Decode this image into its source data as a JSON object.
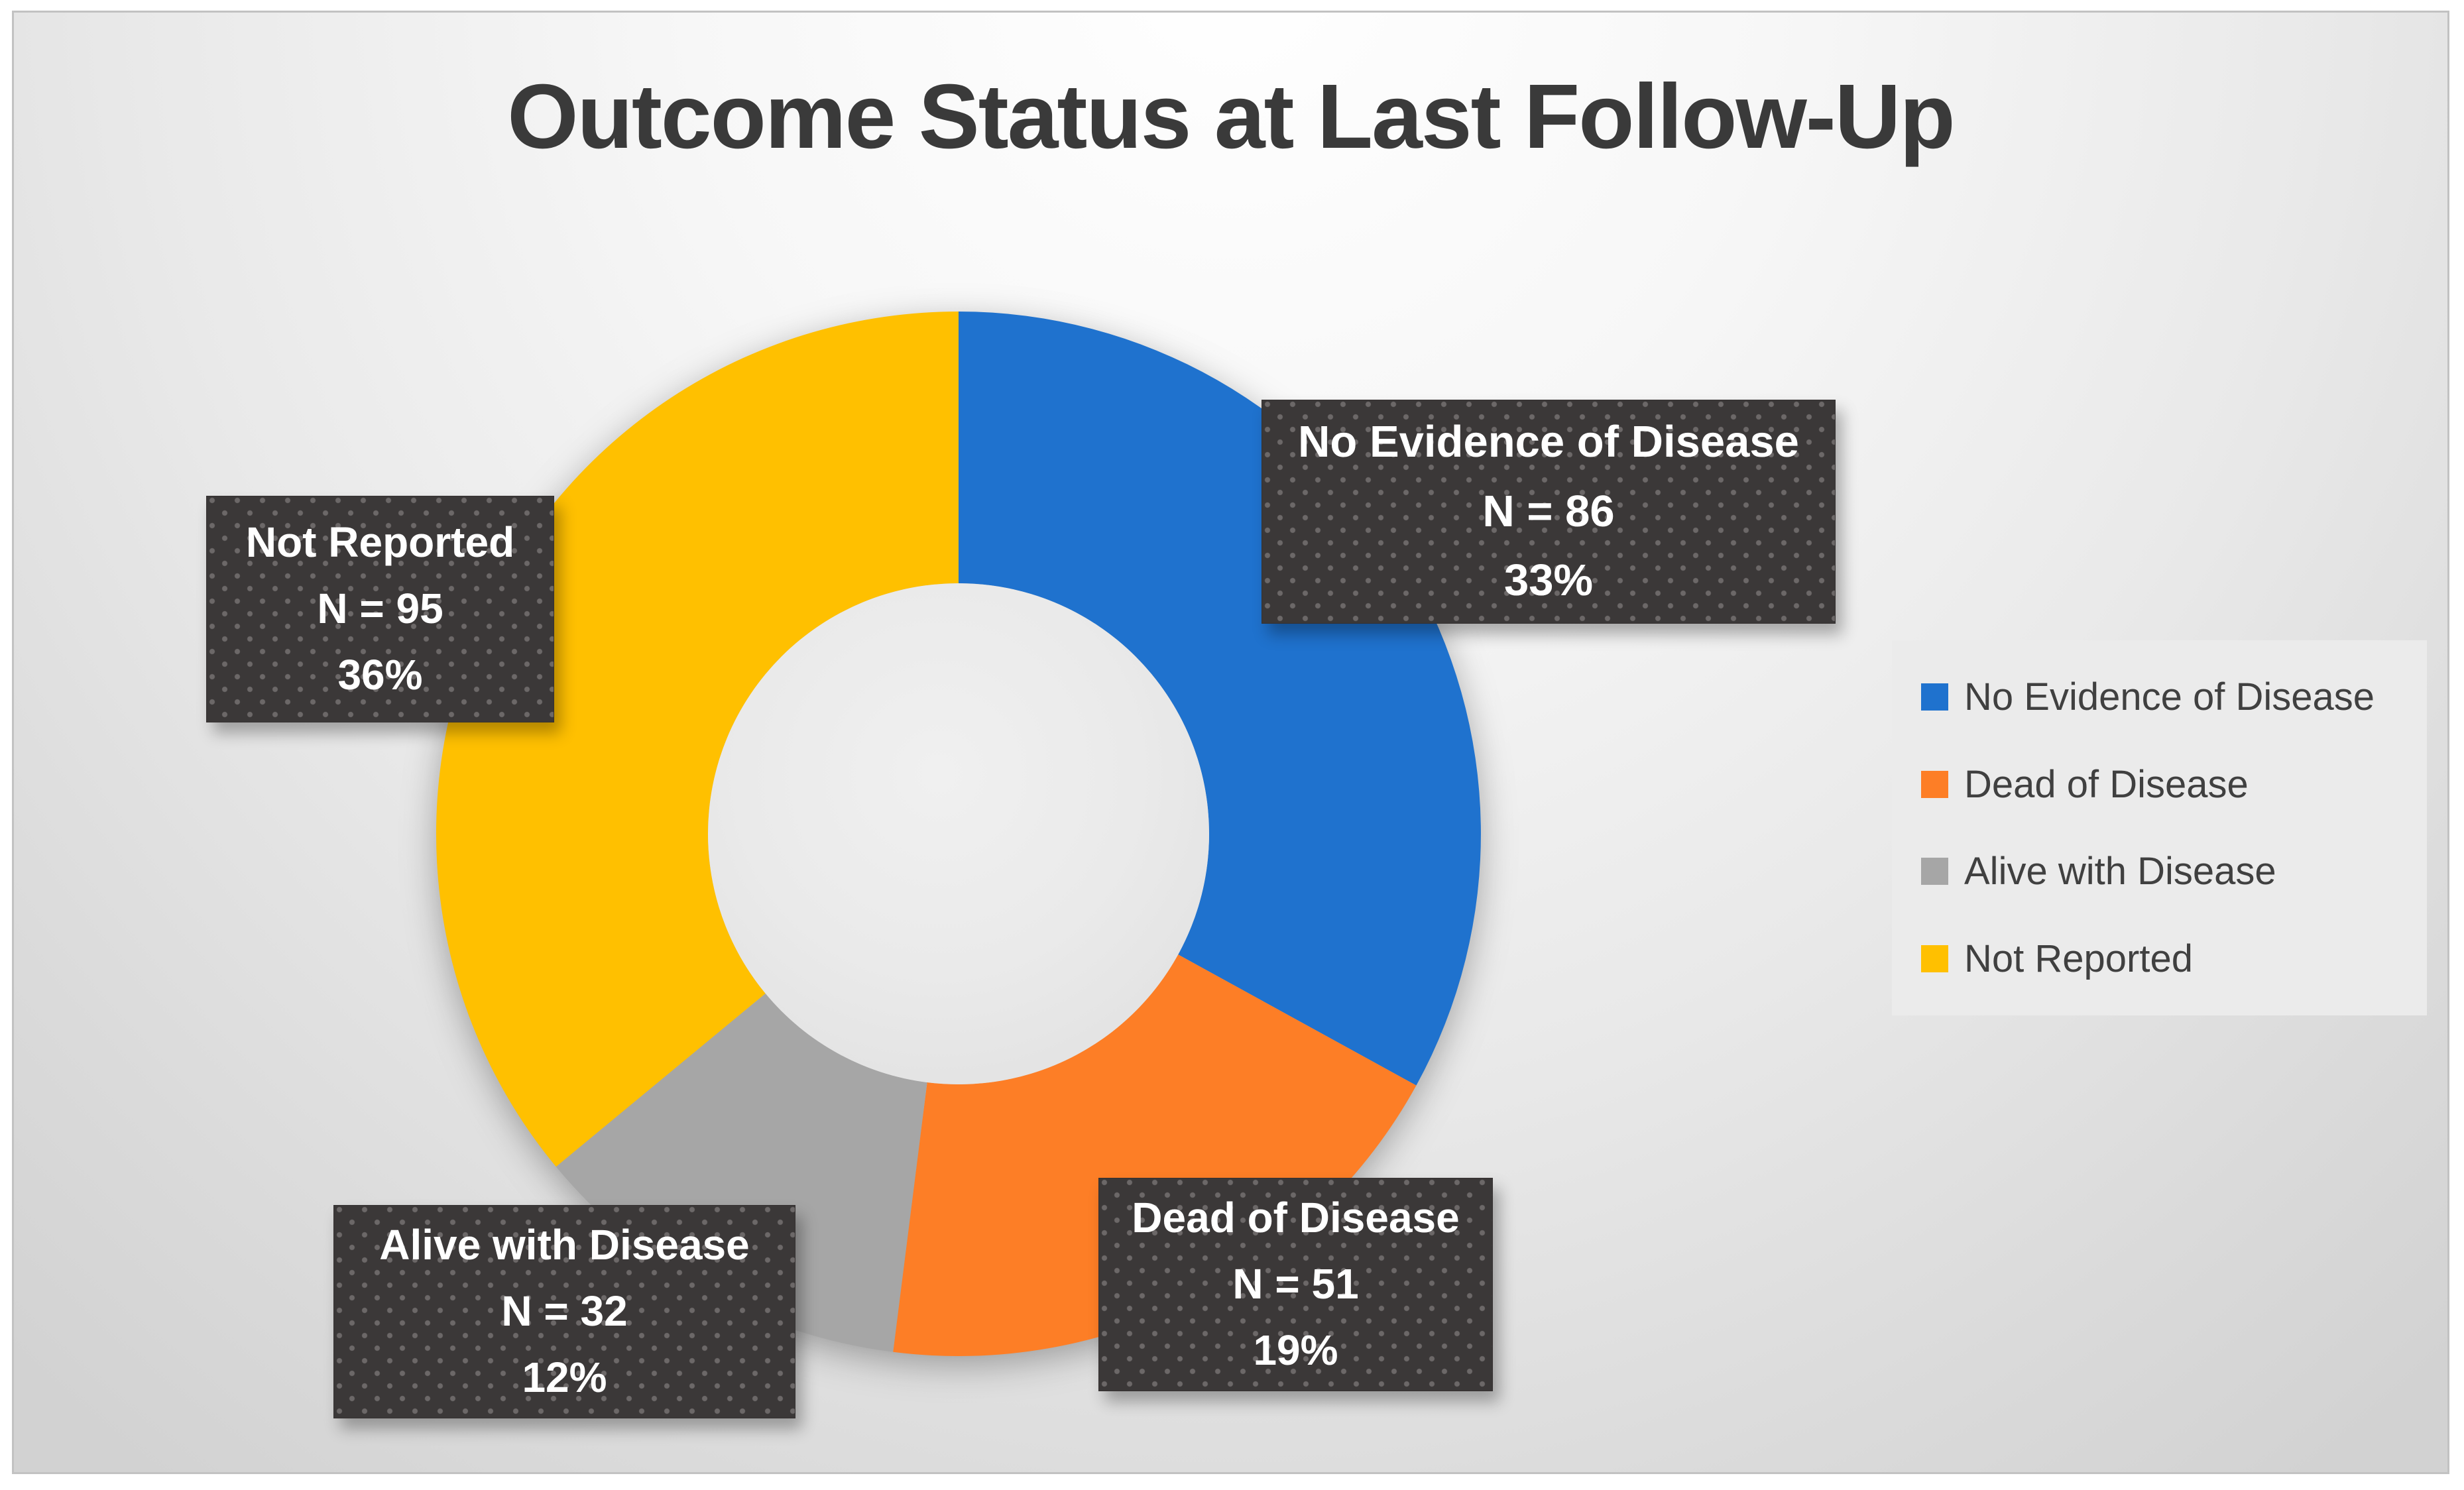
{
  "title": "Outcome Status at Last Follow-Up",
  "chart_data": {
    "type": "pie",
    "subtype": "donut",
    "title": "Outcome Status at Last Follow-Up",
    "direction": "clockwise",
    "start_angle_deg": 0,
    "legend_position": "right",
    "hole_ratio": 0.48,
    "segments": [
      {
        "label": "No Evidence of Disease",
        "n": 86,
        "pct": 33,
        "n_text": "N = 86",
        "pct_text": "33%",
        "color": "#1F72CE"
      },
      {
        "label": "Dead of Disease",
        "n": 51,
        "pct": 19,
        "n_text": "N = 51",
        "pct_text": "19%",
        "color": "#FD7E26"
      },
      {
        "label": "Alive with Disease",
        "n": 32,
        "pct": 12,
        "n_text": "N = 32",
        "pct_text": "12%",
        "color": "#A6A6A6"
      },
      {
        "label": "Not Reported",
        "n": 95,
        "pct": 36,
        "n_text": "N = 95",
        "pct_text": "36%",
        "color": "#FFC000"
      }
    ]
  }
}
